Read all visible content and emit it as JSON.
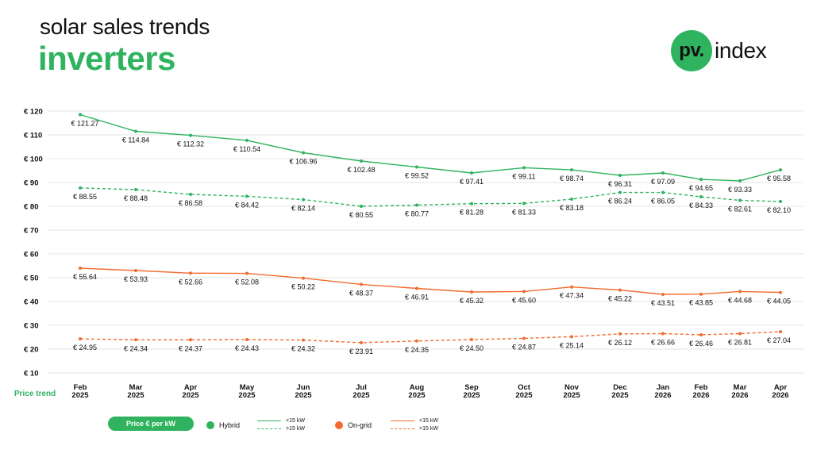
{
  "header": {
    "subtitle": "solar sales trends",
    "title": "inverters",
    "logo_circle": "pv.",
    "logo_text": "index"
  },
  "colors": {
    "hybrid": "#2fb35f",
    "ongrid": "#f26b2e",
    "grid": "#e6e6e6",
    "text": "#111111"
  },
  "chart_data": {
    "type": "line",
    "row_label": "Price trend",
    "categories": [
      [
        "Feb",
        "2025"
      ],
      [
        "Mar",
        "2025"
      ],
      [
        "Apr",
        "2025"
      ],
      [
        "May",
        "2025"
      ],
      [
        "Jun",
        "2025"
      ],
      [
        "Jul",
        "2025"
      ],
      [
        "Aug",
        "2025"
      ],
      [
        "Sep",
        "2025"
      ],
      [
        "Oct",
        "2025"
      ],
      [
        "Nov",
        "2025"
      ],
      [
        "Dec",
        "2025"
      ],
      [
        "Jan",
        "2026"
      ],
      [
        "Feb",
        "2026"
      ],
      [
        "Mar",
        "2026"
      ],
      [
        "Apr",
        "2026"
      ]
    ],
    "ylim": [
      10,
      120
    ],
    "yticks": [
      "€ 10",
      "€ 20",
      "€ 30",
      "€ 40",
      "€ 50",
      "€ 60",
      "€ 70",
      "€ 80",
      "€ 90",
      "€ 100",
      "€ 110",
      "€ 120"
    ],
    "grid": true,
    "series": [
      {
        "key": "hybrid_lt15",
        "group": "Hybrid",
        "size": "<15 kW",
        "style": "solid",
        "values": [
          118.5,
          111.5,
          109.8,
          107.7,
          102.5,
          99.0,
          96.5,
          94.0,
          96.2,
          95.3,
          93.0,
          94.0,
          91.3,
          90.7,
          95.3
        ],
        "labels": [
          "€ 121.27",
          "€ 114.84",
          "€ 112.32",
          "€ 110.54",
          "€ 106.96",
          "€ 102.48",
          "€ 99.52",
          "€ 97.41",
          "€ 99.11",
          "€ 98.74",
          "€ 96.31",
          "€ 97.09",
          "€ 94.65",
          "€ 93.33",
          "€ 95.58"
        ]
      },
      {
        "key": "hybrid_gt15",
        "group": "Hybrid",
        "size": ">15 kW",
        "style": "dashed",
        "values": [
          87.7,
          87.0,
          85.0,
          84.2,
          82.8,
          80.0,
          80.5,
          81.1,
          81.2,
          83.0,
          85.8,
          85.8,
          84.0,
          82.5,
          82.0
        ],
        "labels": [
          "€ 88.55",
          "€ 88.48",
          "€ 86.58",
          "€ 84.42",
          "€ 82.14",
          "€ 80.55",
          "€ 80.77",
          "€ 81.28",
          "€ 81.33",
          "€ 83.18",
          "€ 86.24",
          "€ 86.05",
          "€ 84.33",
          "€ 82.61",
          "€ 82.10"
        ]
      },
      {
        "key": "ongrid_lt15",
        "group": "On-grid",
        "size": "<15 kW",
        "style": "solid",
        "values": [
          54.0,
          53.0,
          51.9,
          51.8,
          49.8,
          47.2,
          45.5,
          44.0,
          44.2,
          46.1,
          44.8,
          43.0,
          43.1,
          44.2,
          43.8
        ],
        "labels": [
          "€ 55.64",
          "€ 53.93",
          "€ 52.66",
          "€ 52.08",
          "€ 50.22",
          "€ 48.37",
          "€ 46.91",
          "€ 45.32",
          "€ 45.60",
          "€ 47.34",
          "€ 45.22",
          "€ 43.51",
          "€ 43.85",
          "€ 44.68",
          "€ 44.05"
        ]
      },
      {
        "key": "ongrid_gt15",
        "group": "On-grid",
        "size": ">15 kW",
        "style": "dashed",
        "values": [
          24.3,
          23.9,
          23.9,
          24.0,
          23.8,
          22.7,
          23.4,
          24.0,
          24.5,
          25.2,
          26.4,
          26.5,
          26.0,
          26.5,
          27.3
        ],
        "labels": [
          "€ 24.95",
          "€ 24.34",
          "€ 24.37",
          "€ 24.43",
          "€ 24.32",
          "€ 23.91",
          "€ 24.35",
          "€ 24.50",
          "€ 24.87",
          "€ 25.14",
          "€ 26.12",
          "€ 26.66",
          "€ 26.46",
          "€ 26.81",
          "€ 27.04"
        ]
      }
    ]
  },
  "legend": {
    "pill": "Price € per kW",
    "hybrid": "Hybrid",
    "ongrid": "On-grid",
    "lt15": "<15 kW",
    "gt15": ">15 kW"
  }
}
